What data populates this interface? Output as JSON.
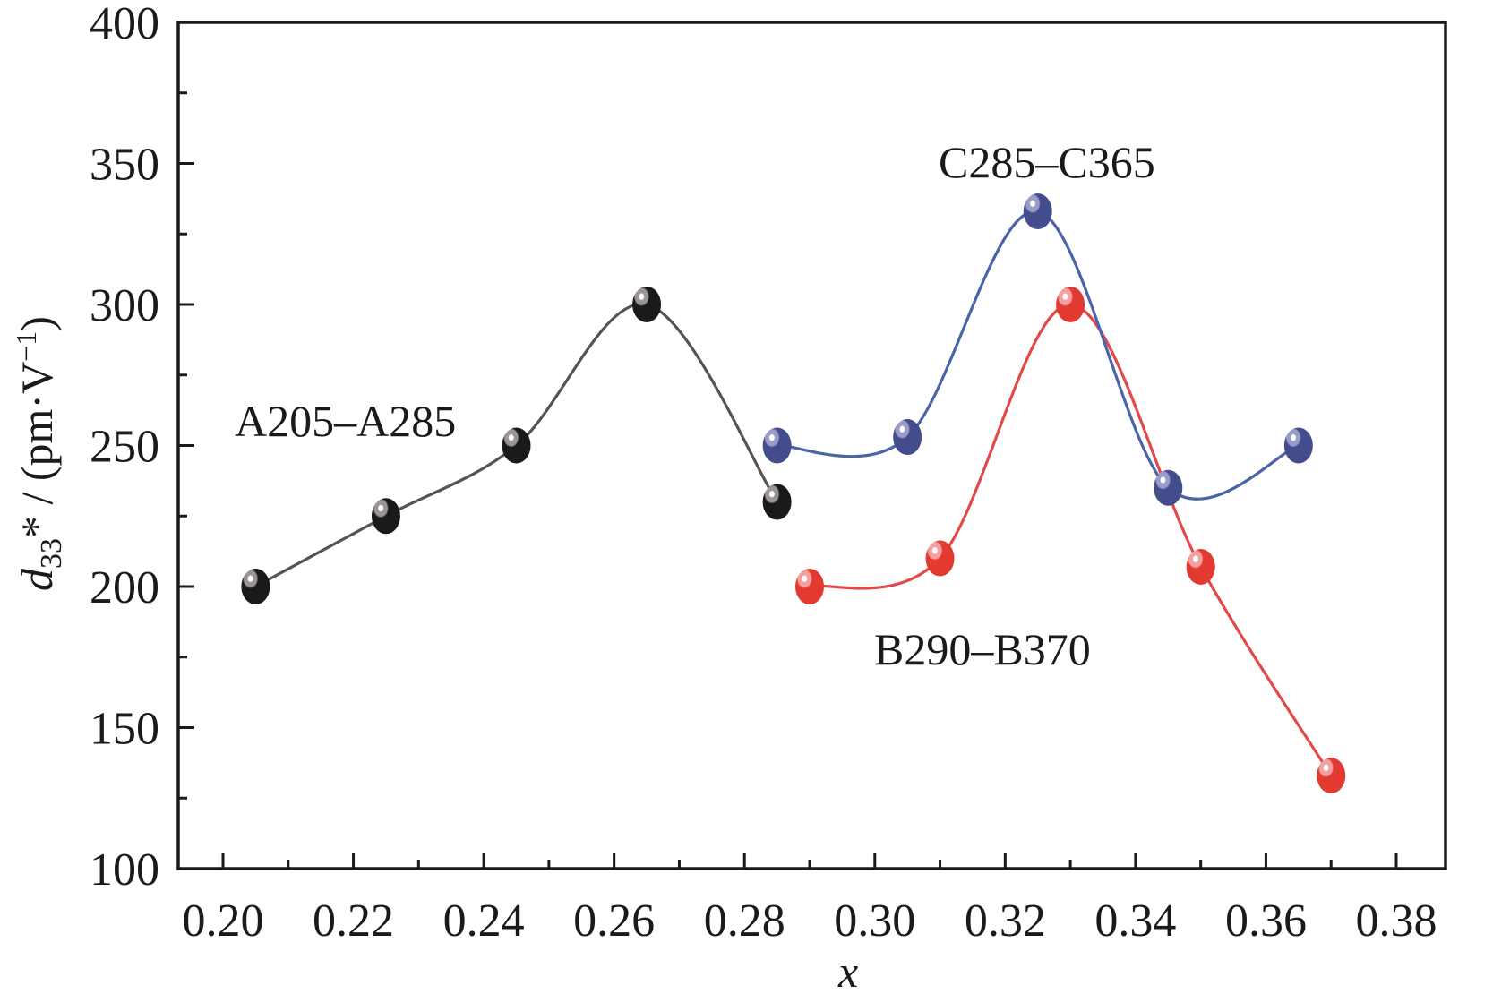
{
  "chart_data": {
    "type": "line",
    "title": "",
    "xlabel": "x",
    "ylabel": {
      "main": "d",
      "subscript": "33",
      "suffix": "* / (pm·V",
      "superscript": "−1",
      "close": ")"
    },
    "xlim": [
      0.19,
      0.38
    ],
    "ylim": [
      100,
      400
    ],
    "xticks": [
      "0.20",
      "0.22",
      "0.24",
      "0.26",
      "0.28",
      "0.30",
      "0.32",
      "0.34",
      "0.36",
      "0.38"
    ],
    "xtick_values": [
      0.2,
      0.22,
      0.24,
      0.26,
      0.28,
      0.3,
      0.32,
      0.34,
      0.36,
      0.38
    ],
    "yticks": [
      "100",
      "150",
      "200",
      "250",
      "300",
      "350",
      "400"
    ],
    "ytick_values": [
      100,
      150,
      200,
      250,
      300,
      350,
      400
    ],
    "grid": false,
    "legend": "none",
    "series": [
      {
        "name": "A205–A285",
        "color": "#5a524e",
        "marker_color": "#1a1a1a",
        "highlight_color": "#9a9494",
        "x": [
          0.205,
          0.225,
          0.245,
          0.265,
          0.285
        ],
        "values": [
          200,
          225,
          250,
          300,
          230
        ]
      },
      {
        "name": "C285–C365",
        "color": "#4a64a8",
        "marker_color": "#444d8c",
        "highlight_color": "#9a9cc8",
        "x": [
          0.285,
          0.305,
          0.325,
          0.345,
          0.365
        ],
        "values": [
          250,
          253,
          333,
          235,
          250
        ]
      },
      {
        "name": "B290–B370",
        "color": "#e24a4a",
        "marker_color": "#e23a30",
        "highlight_color": "#f4a0a0",
        "x": [
          0.29,
          0.31,
          0.33,
          0.35,
          0.37
        ],
        "values": [
          200,
          210,
          300,
          207,
          133
        ]
      }
    ],
    "annotations": [
      {
        "text": "A205–A285",
        "series": 0
      },
      {
        "text": "C285–C365",
        "series": 1
      },
      {
        "text": "B290–B370",
        "series": 2
      }
    ]
  }
}
